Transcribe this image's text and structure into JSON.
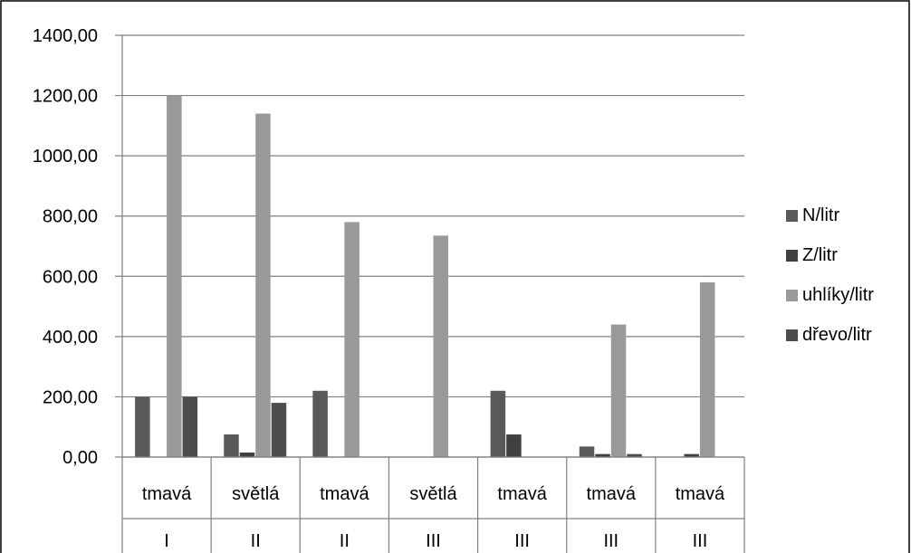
{
  "chart_data": {
    "type": "bar",
    "ylim": [
      0,
      1400
    ],
    "yticks": [
      "0,00",
      "200,00",
      "400,00",
      "600,00",
      "800,00",
      "1000,00",
      "1200,00",
      "1400,00"
    ],
    "ytick_values": [
      0,
      200,
      400,
      600,
      800,
      1000,
      1200,
      1400
    ],
    "grid": true,
    "legend_position": "right",
    "categories": [
      "tmavá",
      "světlá",
      "tmavá",
      "světlá",
      "tmavá",
      "tmavá",
      "tmavá"
    ],
    "category_groups": [
      "I",
      "II",
      "II",
      "III",
      "III",
      "III",
      "III"
    ],
    "series": [
      {
        "name": "N/litr",
        "color": "#595959",
        "values": [
          200,
          75,
          220,
          0,
          220,
          35,
          0
        ]
      },
      {
        "name": "Z/litr",
        "color": "#404040",
        "values": [
          0,
          15,
          0,
          0,
          75,
          10,
          10
        ]
      },
      {
        "name": "uhlíky/litr",
        "color": "#999999",
        "values": [
          1200,
          1140,
          780,
          735,
          0,
          440,
          580
        ]
      },
      {
        "name": "dřevo/litr",
        "color": "#4d4d4d",
        "values": [
          200,
          180,
          0,
          0,
          0,
          10,
          0
        ]
      }
    ]
  }
}
